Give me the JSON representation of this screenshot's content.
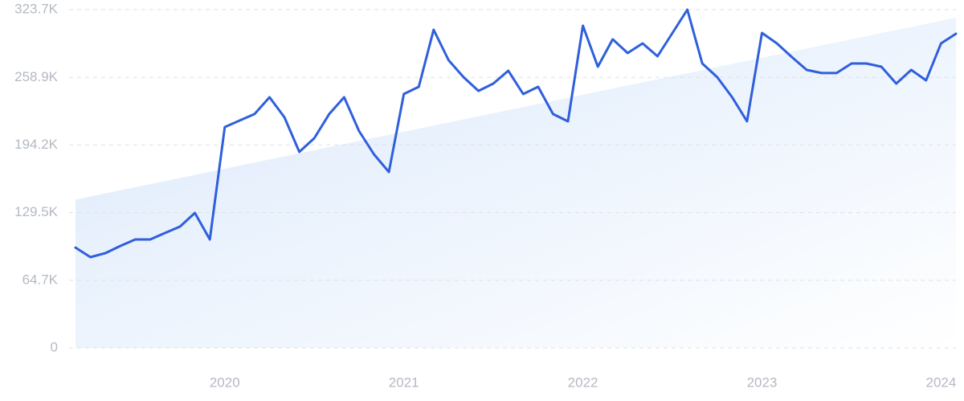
{
  "chart_data": {
    "type": "line",
    "categories": [
      null,
      null,
      null,
      null,
      null,
      null,
      null,
      null,
      null,
      null,
      "2020",
      null,
      null,
      null,
      null,
      null,
      null,
      null,
      null,
      null,
      null,
      null,
      "2021",
      null,
      null,
      null,
      null,
      null,
      null,
      null,
      null,
      null,
      null,
      null,
      "2022",
      null,
      null,
      null,
      null,
      null,
      null,
      null,
      null,
      null,
      null,
      null,
      "2023",
      null,
      null,
      null,
      null,
      null,
      null,
      null,
      null,
      null,
      null,
      null,
      "2024",
      null
    ],
    "series": [
      {
        "color": "#2f5fdb",
        "values": [
          96000,
          86900,
          90700,
          97600,
          103800,
          103800,
          110000,
          116100,
          129200,
          103800,
          211400,
          217600,
          223800,
          239900,
          220700,
          187600,
          200700,
          223800,
          239900,
          207600,
          185300,
          168400,
          243000,
          249900,
          304500,
          275300,
          259100,
          246000,
          253000,
          265300,
          243000,
          249900,
          223800,
          216800,
          308300,
          269100,
          295300,
          282200,
          291400,
          279100,
          301400,
          323700,
          272200,
          259100,
          239900,
          216800,
          301400,
          291400,
          278300,
          266000,
          263000,
          263000,
          272200,
          272200,
          269100,
          253000,
          266000,
          256000,
          291400,
          300600
        ]
      }
    ],
    "trend": {
      "color": "#dbe9fb",
      "values": [
        142000,
        316000
      ]
    },
    "ylim": [
      0,
      323700
    ],
    "yticks": [
      0,
      {
        "value": 64700,
        "label": "64.7K"
      },
      {
        "value": 129500,
        "label": "129.5K"
      },
      {
        "value": 194200,
        "label": "194.2K"
      },
      {
        "value": 258900,
        "label": "258.9K"
      },
      {
        "value": 323700,
        "label": "323.7K"
      }
    ],
    "grid": true
  }
}
